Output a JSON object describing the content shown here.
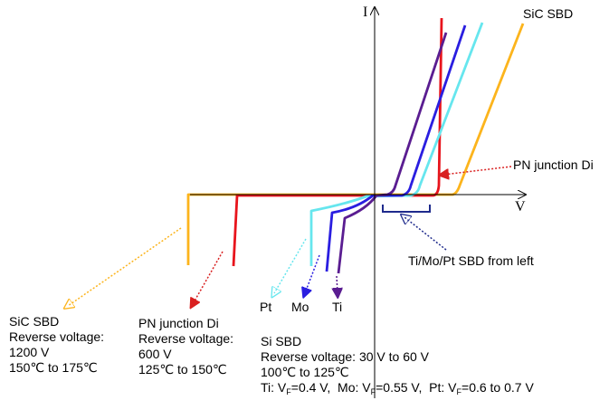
{
  "axes": {
    "x_label": "V",
    "y_label": "I"
  },
  "colors": {
    "sic": "#fcb41c",
    "pn": "#e8141c",
    "ti": "#5a1d91",
    "mo": "#2a1ee0",
    "pt": "#66e6ee",
    "pn_arrow": "#d92020",
    "bracket": "#1e2a8c"
  },
  "labels": {
    "sic_curve": "SiC SBD",
    "pn_callout": "PN junction Di",
    "schottky_callout": "Ti/Mo/Pt SBD from left",
    "pt": "Pt",
    "mo": "Mo",
    "ti": "Ti"
  },
  "captions": {
    "sic": {
      "title": "SiC SBD",
      "line1": "Reverse voltage:",
      "line2": "1200 V",
      "line3": "150℃ to 175℃"
    },
    "pn": {
      "title": "PN junction Di",
      "line1": "Reverse voltage:",
      "line2": "600 V",
      "line3": "125℃ to 150℃"
    },
    "si": {
      "title": "Si SBD",
      "line1": "Reverse voltage: 30 V to 60 V",
      "line2": "100℃ to 125℃",
      "vf": {
        "ti_prefix": "Ti: V",
        "sub_f": "F",
        "ti_value": "=0.4 V,",
        "mo_prefix": "Mo: V",
        "mo_value": "=0.55 V,",
        "pt_prefix": "Pt: V",
        "pt_value": "=0.6 to 0.7 V"
      }
    }
  }
}
